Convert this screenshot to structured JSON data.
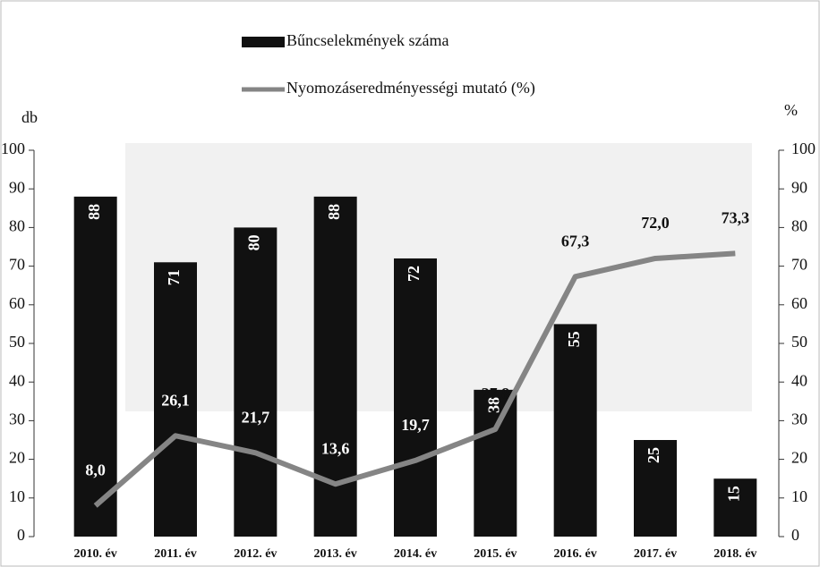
{
  "chart_data": {
    "type": "bar_line",
    "categories": [
      "2010. év",
      "2011. év",
      "2012. év",
      "2013. év",
      "2014. év",
      "2015. év",
      "2016. év",
      "2017. év",
      "2018. év"
    ],
    "series": [
      {
        "name": "Bűncselekmények száma",
        "color": "#111111",
        "type": "bar",
        "values": [
          88,
          71,
          80,
          88,
          72,
          38,
          55,
          25,
          15
        ]
      },
      {
        "name": "Nyomozáseredményességi mutató (%)",
        "color": "#858585",
        "type": "line",
        "axis": "y2",
        "values": [
          8.0,
          26.1,
          21.7,
          13.6,
          19.7,
          27.8,
          67.3,
          72.0,
          73.3
        ],
        "value_labels": [
          "8,0",
          "26,1",
          "21,7",
          "13,6",
          "19,7",
          "27,8",
          "67,3",
          "72,0",
          "73,3"
        ]
      }
    ],
    "y_label": "db",
    "y2_label": "%",
    "ylim": [
      0,
      100
    ],
    "yticks": [
      0,
      10,
      20,
      30,
      40,
      50,
      60,
      70,
      80,
      90,
      100
    ],
    "y2lim": [
      0,
      100
    ],
    "y2ticks": [
      0,
      10,
      20,
      30,
      40,
      50,
      60,
      70,
      80,
      90,
      100
    ],
    "legend": "top"
  }
}
